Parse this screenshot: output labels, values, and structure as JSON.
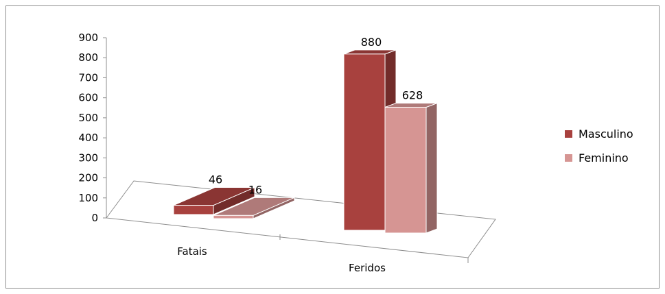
{
  "chart_data": {
    "type": "bar",
    "categories": [
      "Fatais",
      "Feridos"
    ],
    "series": [
      {
        "name": "Masculino",
        "values": [
          46,
          880
        ],
        "color": "#a8413e"
      },
      {
        "name": "Feminino",
        "values": [
          16,
          628
        ],
        "color": "#d69593"
      }
    ],
    "ylim": [
      0,
      900
    ],
    "yticks": [
      "0",
      "100",
      "200",
      "300",
      "400",
      "500",
      "600",
      "700",
      "800",
      "900"
    ],
    "legend": "right",
    "grid": false,
    "title": "",
    "xlabel": "",
    "ylabel": ""
  }
}
